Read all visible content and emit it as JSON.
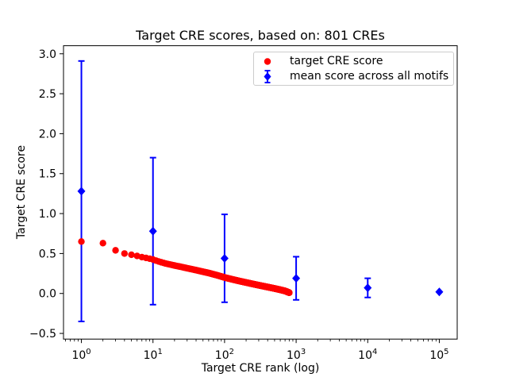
{
  "chart_data": {
    "type": "scatter",
    "title": "Target CRE scores, based on: 801 CREs",
    "xlabel": "Target CRE rank (log)",
    "ylabel": "Target CRE score",
    "x_scale": "log",
    "xlim": [
      0.5623,
      177828
    ],
    "ylim": [
      -0.571,
      3.101
    ],
    "x_tick_exponents": [
      0,
      1,
      2,
      3,
      4,
      5
    ],
    "y_ticks": [
      -0.5,
      0.0,
      0.5,
      1.0,
      1.5,
      2.0,
      2.5,
      3.0
    ],
    "grid": false,
    "legend": {
      "position": "upper right"
    },
    "series": [
      {
        "name": "target CRE score",
        "type": "scatter",
        "marker": "circle",
        "color": "#ff0000",
        "n_points": 801,
        "anchor_points": [
          [
            1,
            0.65
          ],
          [
            2,
            0.63
          ],
          [
            3,
            0.54
          ],
          [
            4,
            0.5
          ],
          [
            5,
            0.485
          ],
          [
            6,
            0.47
          ],
          [
            7,
            0.455
          ],
          [
            8,
            0.445
          ],
          [
            9,
            0.435
          ],
          [
            10,
            0.425
          ],
          [
            12,
            0.4
          ],
          [
            15,
            0.375
          ],
          [
            20,
            0.35
          ],
          [
            25,
            0.332
          ],
          [
            30,
            0.316
          ],
          [
            40,
            0.292
          ],
          [
            50,
            0.272
          ],
          [
            60,
            0.256
          ],
          [
            80,
            0.226
          ],
          [
            100,
            0.2
          ],
          [
            130,
            0.175
          ],
          [
            160,
            0.156
          ],
          [
            200,
            0.137
          ],
          [
            250,
            0.118
          ],
          [
            300,
            0.103
          ],
          [
            400,
            0.08
          ],
          [
            500,
            0.062
          ],
          [
            600,
            0.046
          ],
          [
            700,
            0.031
          ],
          [
            801,
            0.01
          ]
        ]
      },
      {
        "name": "mean score across all motifs",
        "type": "errorbar",
        "marker": "diamond",
        "color": "#0000ff",
        "points": [
          {
            "x": 1,
            "mean": 1.28,
            "err": 1.63
          },
          {
            "x": 10,
            "mean": 0.78,
            "err": 0.92
          },
          {
            "x": 100,
            "mean": 0.44,
            "err": 0.55
          },
          {
            "x": 1000,
            "mean": 0.19,
            "err": 0.27
          },
          {
            "x": 10000,
            "mean": 0.07,
            "err": 0.12
          },
          {
            "x": 100000,
            "mean": 0.02,
            "err": 0
          }
        ]
      }
    ]
  },
  "colors": {
    "red": "#ff0000",
    "blue": "#0000ff",
    "axis": "#000000",
    "legend_border": "#cccccc",
    "background": "#ffffff"
  }
}
